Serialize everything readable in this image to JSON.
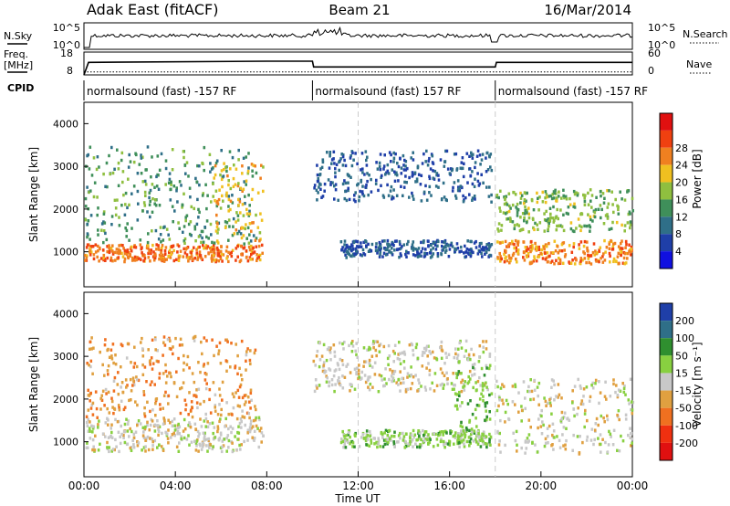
{
  "header": {
    "radar": "Adak East (fitACF)",
    "beam": "Beam 21",
    "date": "16/Mar/2014"
  },
  "params": {
    "nsky_label": "N.Sky",
    "nsky_ticks": [
      "10^5",
      "10^0"
    ],
    "nsearch_label": "N.Search",
    "nsearch_ticks": [
      "10^5",
      "10^0"
    ],
    "freq_label": "Freq.",
    "freq_unit": "[MHz]",
    "freq_ticks": [
      "18",
      "8"
    ],
    "nave_label": "Nave",
    "nave_ticks": [
      "60",
      "0"
    ],
    "cpid_label": "CPID",
    "cpid_segments": [
      {
        "text": "normalsound (fast) -157 RF",
        "start_h": 0,
        "end_h": 10
      },
      {
        "text": "normalsound (fast) 157 RF",
        "start_h": 10,
        "end_h": 18
      },
      {
        "text": "normalsound (fast) -157 RF",
        "start_h": 18,
        "end_h": 24
      }
    ],
    "freq_series": {
      "hours": [
        0,
        0.2,
        8,
        10,
        10.05,
        18,
        18.05,
        24
      ],
      "mhz": [
        8,
        13.5,
        14,
        14,
        11.5,
        11.5,
        13.5,
        13.5
      ]
    },
    "nave_series": {
      "hours": [
        0,
        24
      ],
      "value": [
        8,
        8
      ]
    }
  },
  "chart_data": [
    {
      "type": "heatmap",
      "title": "",
      "xlabel": "Time UT",
      "ylabel": "Slant Range [km]",
      "xlim": [
        0,
        24
      ],
      "ylim": [
        180,
        4500
      ],
      "x_ticks": [
        "00:00",
        "04:00",
        "08:00",
        "12:00",
        "16:00",
        "20:00",
        "00:00"
      ],
      "y_ticks": [
        1000,
        2000,
        3000,
        4000
      ],
      "colorbar": {
        "label": "Power [dB]",
        "ticks": [
          4,
          8,
          12,
          16,
          20,
          24,
          28
        ],
        "levels": [
          0,
          4,
          8,
          12,
          16,
          20,
          24,
          28,
          32
        ],
        "colors": [
          "#1010e0",
          "#1f3fa8",
          "#2f6f88",
          "#3f8f5a",
          "#8fbf3f",
          "#f0c020",
          "#f08020",
          "#f04010",
          "#e01010"
        ]
      },
      "regions": [
        {
          "name": "early F-region echo band",
          "t0": 0,
          "t1": 7.8,
          "r0": 800,
          "r1": 1200,
          "power_db": 27
        },
        {
          "name": "early scattered echoes",
          "t0": 0,
          "t1": 7.5,
          "r0": 1200,
          "r1": 3500,
          "power_db": 14
        },
        {
          "name": "rising arc",
          "t0": 5.5,
          "t1": 7.8,
          "r0": 1200,
          "r1": 3200,
          "power_db": 22
        },
        {
          "name": "night upper band",
          "t0": 10,
          "t1": 17.8,
          "r0": 2200,
          "r1": 3400,
          "power_db": 8
        },
        {
          "name": "night lower band",
          "t0": 11.2,
          "t1": 17.8,
          "r0": 900,
          "r1": 1300,
          "power_db": 8
        },
        {
          "name": "late F-region echo band",
          "t0": 18,
          "t1": 24,
          "r0": 750,
          "r1": 1300,
          "power_db": 26
        },
        {
          "name": "late mid band",
          "t0": 18,
          "t1": 24,
          "r0": 1500,
          "r1": 2500,
          "power_db": 17
        }
      ]
    },
    {
      "type": "heatmap",
      "title": "",
      "xlabel": "Time UT",
      "ylabel": "Slant Range [km]",
      "xlim": [
        0,
        24
      ],
      "ylim": [
        180,
        4500
      ],
      "x_ticks": [
        "00:00",
        "04:00",
        "08:00",
        "12:00",
        "16:00",
        "20:00",
        "00:00"
      ],
      "y_ticks": [
        1000,
        2000,
        3000,
        4000
      ],
      "colorbar": {
        "label": "Velocity [m s⁻¹]",
        "ticks": [
          200,
          100,
          50,
          15,
          -15,
          -50,
          -100,
          -200
        ],
        "levels": [
          250,
          200,
          100,
          50,
          15,
          -15,
          -50,
          -100,
          -200,
          -250
        ],
        "colors": [
          "#1f3fa8",
          "#2f6f88",
          "#2f8f2f",
          "#88d040",
          "#c8c8c8",
          "#e0a040",
          "#f07020",
          "#f03010",
          "#e01010"
        ]
      },
      "regions": [
        {
          "name": "early ground scatter",
          "t0": 0,
          "t1": 7.8,
          "r0": 800,
          "r1": 1600,
          "velocity": 0
        },
        {
          "name": "early ionospheric echoes",
          "t0": 0,
          "t1": 7.5,
          "r0": 1600,
          "r1": 3500,
          "velocity": -40
        },
        {
          "name": "night upper band",
          "t0": 10,
          "t1": 17.8,
          "r0": 2200,
          "r1": 3400,
          "velocity": 0
        },
        {
          "name": "night lower band",
          "t0": 11.2,
          "t1": 17.8,
          "r0": 900,
          "r1": 1300,
          "velocity": 30
        },
        {
          "name": "descending green streak",
          "t0": 16.2,
          "t1": 17.8,
          "r0": 1200,
          "r1": 2800,
          "velocity": 40
        },
        {
          "name": "late ground scatter",
          "t0": 18,
          "t1": 24,
          "r0": 750,
          "r1": 2500,
          "velocity": 0
        }
      ]
    }
  ]
}
